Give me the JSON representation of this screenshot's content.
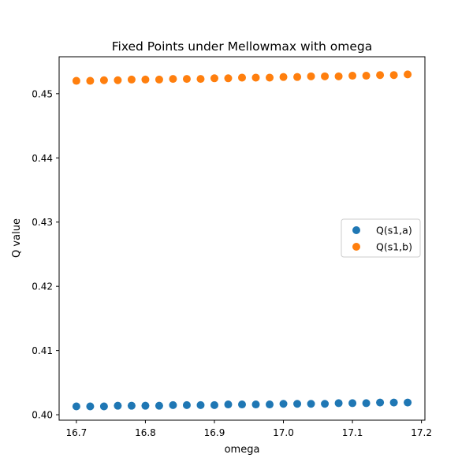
{
  "chart_data": {
    "type": "scatter",
    "title": "Fixed Points under Mellowmax with omega",
    "xlabel": "omega",
    "ylabel": "Q value",
    "xlim": [
      16.675,
      17.205
    ],
    "ylim": [
      0.39915,
      0.45575
    ],
    "xticks": [
      16.7,
      16.8,
      16.9,
      17.0,
      17.1,
      17.2
    ],
    "xtick_labels": [
      "16.7",
      "16.8",
      "16.9",
      "17.0",
      "17.1",
      "17.2"
    ],
    "yticks": [
      0.4,
      0.41,
      0.42,
      0.43,
      0.44,
      0.45
    ],
    "ytick_labels": [
      "0.40",
      "0.41",
      "0.42",
      "0.43",
      "0.44",
      "0.45"
    ],
    "grid": false,
    "legend_position": "center-right",
    "x": [
      16.7,
      16.72,
      16.74,
      16.76,
      16.78,
      16.8,
      16.82,
      16.84,
      16.86,
      16.88,
      16.9,
      16.92,
      16.94,
      16.96,
      16.98,
      17.0,
      17.02,
      17.04,
      17.06,
      17.08,
      17.1,
      17.12,
      17.14,
      17.16,
      17.18
    ],
    "series": [
      {
        "name": "Q(s1,a)",
        "color": "#1f77b4",
        "values": [
          0.4013,
          0.4013,
          0.4013,
          0.4014,
          0.4014,
          0.4014,
          0.4014,
          0.4015,
          0.4015,
          0.4015,
          0.4015,
          0.4016,
          0.4016,
          0.4016,
          0.4016,
          0.4017,
          0.4017,
          0.4017,
          0.4017,
          0.4018,
          0.4018,
          0.4018,
          0.4019,
          0.4019,
          0.4019
        ]
      },
      {
        "name": "Q(s1,b)",
        "color": "#ff7f0e",
        "values": [
          0.452,
          0.452,
          0.4521,
          0.4521,
          0.4522,
          0.4522,
          0.4522,
          0.4523,
          0.4523,
          0.4523,
          0.4524,
          0.4524,
          0.4525,
          0.4525,
          0.4525,
          0.4526,
          0.4526,
          0.4527,
          0.4527,
          0.4527,
          0.4528,
          0.4528,
          0.4529,
          0.4529,
          0.453
        ]
      }
    ]
  }
}
